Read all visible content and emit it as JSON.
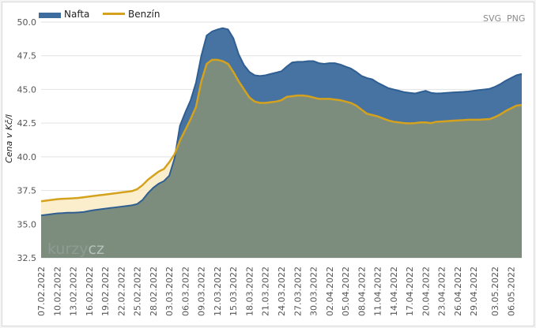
{
  "chart_data": {
    "type": "area",
    "title": "",
    "xlabel": "",
    "ylabel": "Cena v Kč/l",
    "ylim": [
      32.5,
      50.0
    ],
    "yticks": [
      "50.0",
      "47.5",
      "45.0",
      "42.5",
      "40.0",
      "37.5",
      "35.0",
      "32.5"
    ],
    "ytick_values": [
      50.0,
      47.5,
      45.0,
      42.5,
      40.0,
      37.5,
      35.0,
      32.5
    ],
    "grid": true,
    "legend_position": "top-left",
    "xtick_labels": [
      "07.02.2022",
      "10.02.2022",
      "13.02.2022",
      "16.02.2022",
      "19.02.2022",
      "22.02.2022",
      "25.02.2022",
      "28.02.2022",
      "03.03.2022",
      "06.03.2022",
      "09.03.2022",
      "12.03.2022",
      "15.03.2022",
      "18.03.2022",
      "21.03.2022",
      "24.03.2022",
      "27.03.2022",
      "30.03.2022",
      "02.04.2022",
      "05.04.2022",
      "08.04.2022",
      "11.04.2022",
      "14.04.2022",
      "17.04.2022",
      "20.04.2022",
      "23.04.2022",
      "26.04.2022",
      "29.04.2022",
      "03.05.2022",
      "06.05.2022"
    ],
    "x": [
      "07.02.2022",
      "08.02.2022",
      "09.02.2022",
      "10.02.2022",
      "11.02.2022",
      "12.02.2022",
      "13.02.2022",
      "14.02.2022",
      "15.02.2022",
      "16.02.2022",
      "17.02.2022",
      "18.02.2022",
      "19.02.2022",
      "20.02.2022",
      "21.02.2022",
      "22.02.2022",
      "23.02.2022",
      "24.02.2022",
      "25.02.2022",
      "26.02.2022",
      "27.02.2022",
      "28.02.2022",
      "01.03.2022",
      "02.03.2022",
      "03.03.2022",
      "04.03.2022",
      "05.03.2022",
      "06.03.2022",
      "07.03.2022",
      "08.03.2022",
      "09.03.2022",
      "10.03.2022",
      "11.03.2022",
      "12.03.2022",
      "13.03.2022",
      "14.03.2022",
      "15.03.2022",
      "16.03.2022",
      "17.03.2022",
      "18.03.2022",
      "19.03.2022",
      "20.03.2022",
      "21.03.2022",
      "22.03.2022",
      "23.03.2022",
      "24.03.2022",
      "25.03.2022",
      "26.03.2022",
      "27.03.2022",
      "28.03.2022",
      "29.03.2022",
      "30.03.2022",
      "31.03.2022",
      "01.04.2022",
      "02.04.2022",
      "03.04.2022",
      "04.04.2022",
      "05.04.2022",
      "06.04.2022",
      "07.04.2022",
      "08.04.2022",
      "09.04.2022",
      "10.04.2022",
      "11.04.2022",
      "12.04.2022",
      "13.04.2022",
      "14.04.2022",
      "15.04.2022",
      "16.04.2022",
      "17.04.2022",
      "18.04.2022",
      "19.04.2022",
      "20.04.2022",
      "21.04.2022",
      "22.04.2022",
      "23.04.2022",
      "24.04.2022",
      "25.04.2022",
      "26.04.2022",
      "27.04.2022",
      "28.04.2022",
      "29.04.2022",
      "30.04.2022",
      "01.05.2022",
      "02.05.2022",
      "03.05.2022",
      "04.05.2022",
      "05.05.2022",
      "06.05.2022",
      "07.05.2022",
      "08.05.2022"
    ],
    "series": [
      {
        "name": "Nafta",
        "color": "#3d6c9e",
        "values": [
          35.65,
          35.7,
          35.75,
          35.8,
          35.82,
          35.85,
          35.85,
          35.87,
          35.9,
          35.98,
          36.05,
          36.1,
          36.15,
          36.2,
          36.25,
          36.3,
          36.35,
          36.4,
          36.5,
          36.8,
          37.3,
          37.7,
          38.0,
          38.2,
          38.6,
          39.9,
          42.3,
          43.3,
          44.2,
          45.5,
          47.5,
          49.0,
          49.3,
          49.45,
          49.55,
          49.45,
          48.8,
          47.6,
          46.8,
          46.3,
          46.05,
          46.0,
          46.05,
          46.15,
          46.25,
          46.35,
          46.7,
          47.0,
          47.05,
          47.05,
          47.1,
          47.1,
          46.95,
          46.9,
          46.95,
          46.95,
          46.85,
          46.7,
          46.55,
          46.3,
          46.0,
          45.85,
          45.75,
          45.5,
          45.3,
          45.1,
          45.0,
          44.9,
          44.8,
          44.75,
          44.7,
          44.8,
          44.9,
          44.75,
          44.7,
          44.72,
          44.75,
          44.78,
          44.8,
          44.82,
          44.85,
          44.9,
          44.95,
          45.0,
          45.05,
          45.2,
          45.4,
          45.65,
          45.85,
          46.05,
          46.15
        ]
      },
      {
        "name": "Benzín",
        "color": "#d4a21c",
        "values": [
          36.7,
          36.75,
          36.8,
          36.85,
          36.88,
          36.9,
          36.92,
          36.95,
          37.0,
          37.05,
          37.1,
          37.15,
          37.2,
          37.25,
          37.3,
          37.35,
          37.4,
          37.45,
          37.6,
          37.9,
          38.3,
          38.6,
          38.9,
          39.1,
          39.6,
          40.2,
          41.2,
          42.0,
          42.8,
          43.7,
          45.6,
          46.9,
          47.2,
          47.2,
          47.1,
          46.9,
          46.3,
          45.6,
          45.0,
          44.4,
          44.1,
          44.0,
          44.0,
          44.05,
          44.1,
          44.2,
          44.45,
          44.5,
          44.55,
          44.55,
          44.5,
          44.4,
          44.3,
          44.3,
          44.3,
          44.25,
          44.2,
          44.1,
          44.0,
          43.8,
          43.5,
          43.2,
          43.1,
          43.0,
          42.85,
          42.7,
          42.6,
          42.55,
          42.5,
          42.48,
          42.5,
          42.55,
          42.55,
          42.5,
          42.6,
          42.62,
          42.65,
          42.68,
          42.7,
          42.72,
          42.75,
          42.75,
          42.75,
          42.78,
          42.8,
          42.95,
          43.15,
          43.4,
          43.6,
          43.8,
          43.85
        ]
      }
    ]
  },
  "legend": [
    {
      "label": "Nafta",
      "color": "#3d6c9e"
    },
    {
      "label": "Benzín",
      "color": "#d4a21c"
    }
  ],
  "export": {
    "svg_label": "SVG",
    "png_label": "PNG"
  },
  "watermark": {
    "part1": "kurzy",
    "part2": "cz"
  }
}
